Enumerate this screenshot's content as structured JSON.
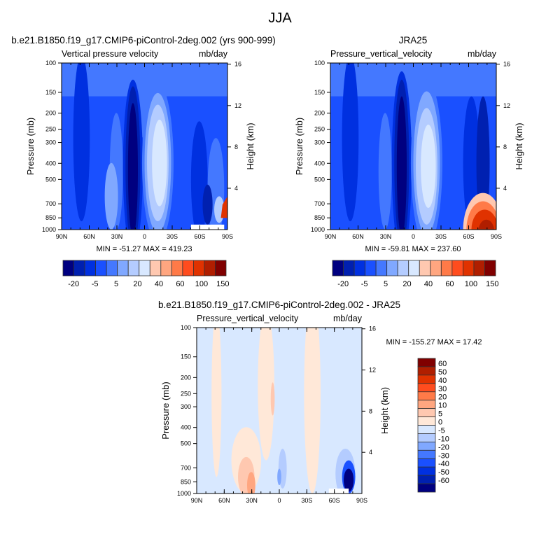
{
  "title": "JJA",
  "chart_data": [
    {
      "type": "heatmap",
      "title": "b.e21.B1850.f19_g17.CMIP6-piControl-2deg.002 (yrs 900-999)",
      "left_string": "Vertical pressure velocity",
      "right_string": "mb/day",
      "ylabel": "Pressure (mb)",
      "y2label": "Height (km)",
      "xticks": [
        "90N",
        "60N",
        "30N",
        "0",
        "30S",
        "60S",
        "90S"
      ],
      "yticks": [
        100,
        150,
        200,
        250,
        300,
        400,
        500,
        700,
        850,
        1000
      ],
      "y2ticks": [
        4,
        8,
        12,
        16
      ],
      "stats": "MIN = -51.27  MAX = 419.23",
      "colorbar_labels": [
        "-20",
        "-5",
        "5",
        "20",
        "40",
        "60",
        "100",
        "150"
      ]
    },
    {
      "type": "heatmap",
      "title": "JRA25",
      "left_string": "Pressure_vertical_velocity",
      "right_string": "mb/day",
      "ylabel": "Pressure (mb)",
      "y2label": "Height (km)",
      "xticks": [
        "90N",
        "60N",
        "30N",
        "0",
        "30S",
        "60S",
        "90S"
      ],
      "yticks": [
        100,
        150,
        200,
        250,
        300,
        400,
        500,
        700,
        850,
        1000
      ],
      "y2ticks": [
        4,
        8,
        12,
        16
      ],
      "stats": "MIN = -59.81  MAX = 237.60",
      "colorbar_labels": [
        "-20",
        "-5",
        "5",
        "20",
        "40",
        "60",
        "100",
        "150"
      ]
    },
    {
      "type": "heatmap",
      "title": "b.e21.B1850.f19_g17.CMIP6-piControl-2deg.002 - JRA25",
      "left_string": "Pressure_vertical_velocity",
      "right_string": "mb/day",
      "ylabel": "Pressure (mb)",
      "y2label": "Height (km)",
      "xticks": [
        "90N",
        "60N",
        "30N",
        "0",
        "30S",
        "60S",
        "90S"
      ],
      "yticks": [
        100,
        150,
        200,
        250,
        300,
        400,
        500,
        700,
        850,
        1000
      ],
      "y2ticks": [
        4,
        8,
        12,
        16
      ],
      "stats": "MIN = -155.27  MAX =  17.42",
      "colorbar_labels": [
        "60",
        "50",
        "40",
        "30",
        "20",
        "10",
        "5",
        "0",
        "-5",
        "-10",
        "-20",
        "-30",
        "-40",
        "-50",
        "-60"
      ]
    }
  ],
  "colors": {
    "top_palette": [
      "#000080",
      "#0020b0",
      "#0030e0",
      "#1a50ff",
      "#4478ff",
      "#80a8ff",
      "#b4ccff",
      "#d8e8ff",
      "#ffe8d8",
      "#ffc8b0",
      "#ffa680",
      "#ff7a48",
      "#ff4c1e",
      "#e03200",
      "#b01e00",
      "#800000"
    ],
    "diff_palette": [
      "#800000",
      "#b01e00",
      "#e03200",
      "#ff4c1e",
      "#ff7a48",
      "#ffa680",
      "#ffc8b0",
      "#ffe8d8",
      "#d8e8ff",
      "#b4ccff",
      "#80a8ff",
      "#4478ff",
      "#1a50ff",
      "#0030e0",
      "#0020b0",
      "#000080"
    ]
  }
}
